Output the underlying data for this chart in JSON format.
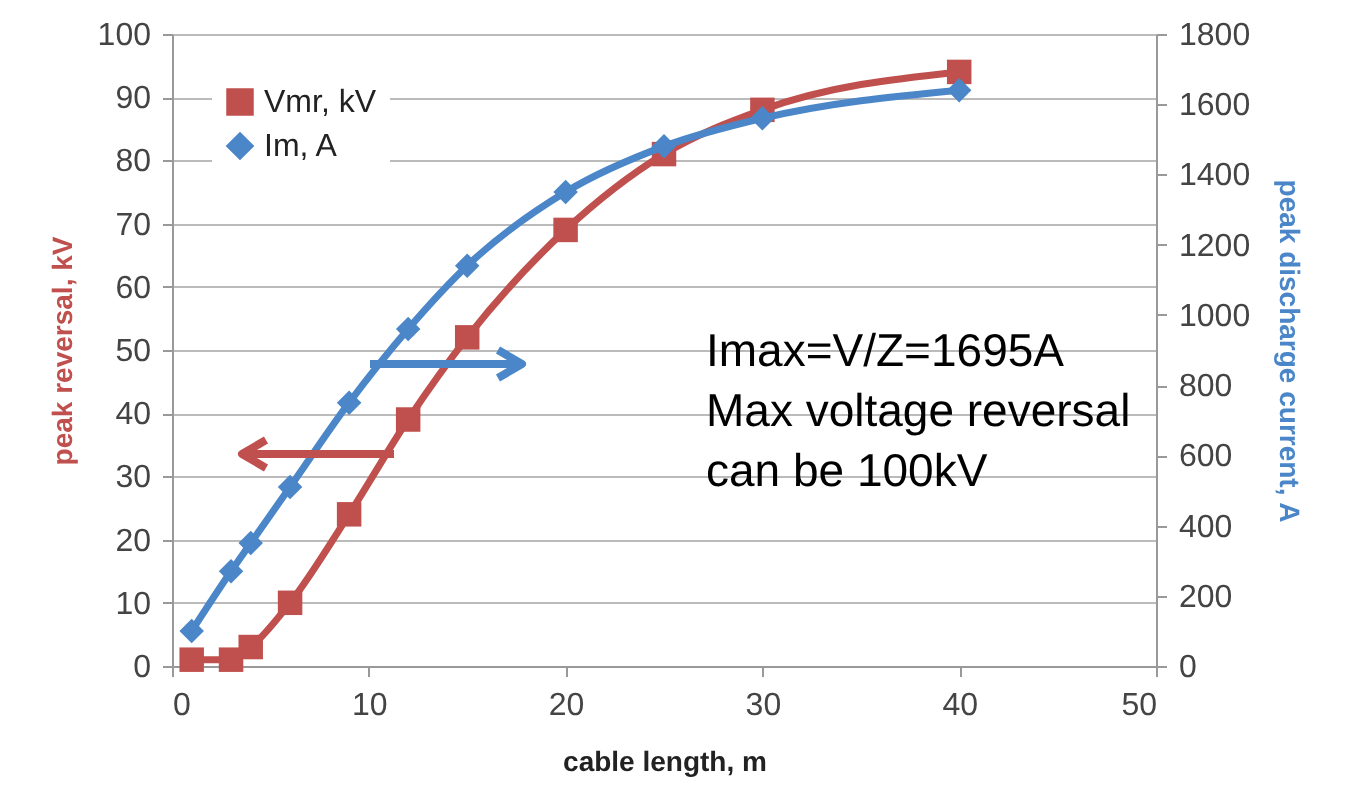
{
  "chart_data": {
    "type": "line",
    "xlabel": "cable length, m",
    "ylabel": "peak reversal, kV",
    "y2label": "peak discharge current, A",
    "x": [
      1,
      3,
      4,
      6,
      9,
      12,
      15,
      20,
      25,
      30,
      40
    ],
    "series": [
      {
        "name": "Vmr, kV",
        "color": "#c0504d",
        "marker": "square",
        "values": [
          1,
          1,
          3,
          10,
          24,
          39,
          52,
          69,
          81,
          88,
          94
        ]
      },
      {
        "name": "Im, A",
        "color": "#4a86c8",
        "marker": "diamond",
        "axis": "y2",
        "values": [
          100,
          270,
          350,
          510,
          750,
          960,
          1140,
          1350,
          1480,
          1560,
          1640
        ]
      }
    ],
    "xlim": [
      0,
      50
    ],
    "xticks": [
      0,
      10,
      20,
      30,
      40,
      50
    ],
    "ylim": [
      0,
      100
    ],
    "yticks": [
      0,
      10,
      20,
      30,
      40,
      50,
      60,
      70,
      80,
      90,
      100
    ],
    "y2lim": [
      0,
      1800
    ],
    "y2ticks": [
      0,
      200,
      400,
      600,
      800,
      1000,
      1200,
      1400,
      1600,
      1800
    ],
    "grid": "y",
    "legend": "top left",
    "annotations": [
      "Imax=V/Z=1695A",
      "Max voltage reversal",
      "can be 100kV"
    ]
  }
}
